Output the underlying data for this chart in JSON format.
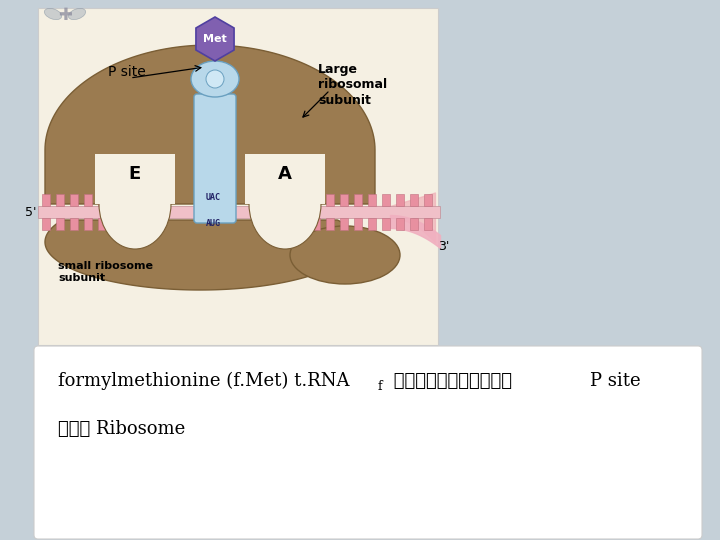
{
  "slide_bg": "#c5d0d8",
  "diagram_bg": "#f5f0e3",
  "white_panel_bg": "#ffffff",
  "ribosome_color": "#9b7b50",
  "ribosome_edge": "#7a5e35",
  "trna_color": "#b8d8ea",
  "trna_edge": "#6aa0c0",
  "met_fill": "#8060b0",
  "met_edge": "#5040a0",
  "mrna_fill": "#f0a0b0",
  "mrna_edge": "#d07080",
  "mrna_bump_fill": "#e890a0",
  "met_text": "Met",
  "large_label": "Large\nribosomal\nsubunit",
  "small_label": "small ribosome\nsubunit",
  "psite_label": "P site",
  "e_label": "E",
  "a_label": "A",
  "uac_label": "UAC",
  "aug_label": "AUG",
  "five_prime": "5'",
  "three_prime": "3'",
  "line1_pre": "formylmethionine (f.Met) t.RNA",
  "line1_sub": "f",
  "line1_thai": " จะเข้ามาจบท",
  "psite_text": "P site",
  "line2": "ของ Ribosome"
}
